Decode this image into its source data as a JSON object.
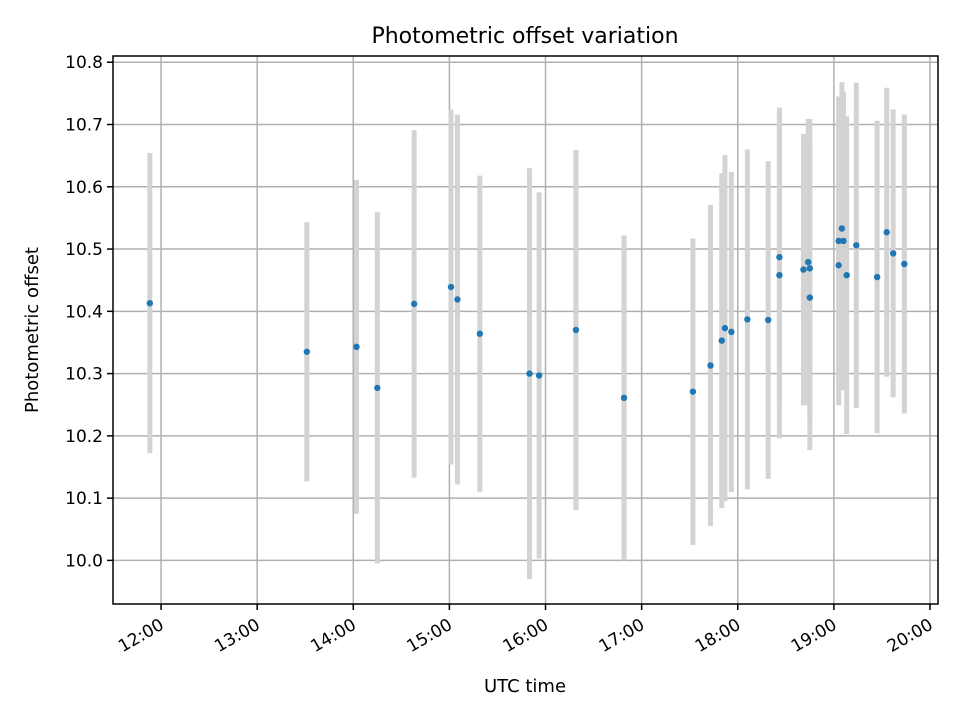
{
  "chart_data": {
    "type": "scatter",
    "title": "Photometric offset variation",
    "xlabel": "UTC time",
    "ylabel": "Photometric offset",
    "xlim": [
      "11:30",
      "20:05"
    ],
    "ylim": [
      9.93,
      10.81
    ],
    "xticks": [
      "12:00",
      "13:00",
      "14:00",
      "15:00",
      "16:00",
      "17:00",
      "18:00",
      "19:00",
      "20:00"
    ],
    "yticks": [
      "10.0",
      "10.1",
      "10.2",
      "10.3",
      "10.4",
      "10.5",
      "10.6",
      "10.7",
      "10.8"
    ],
    "grid": true,
    "point_color": "#1f77b4",
    "errorbar_color": "#d3d3d3",
    "points": [
      {
        "x": "11:53",
        "y": 10.413,
        "err": 0.241
      },
      {
        "x": "13:31",
        "y": 10.335,
        "err": 0.208
      },
      {
        "x": "14:02",
        "y": 10.343,
        "err": 0.268
      },
      {
        "x": "14:15",
        "y": 10.277,
        "err": 0.282
      },
      {
        "x": "14:38",
        "y": 10.412,
        "err": 0.279
      },
      {
        "x": "15:01",
        "y": 10.439,
        "err": 0.285
      },
      {
        "x": "15:05",
        "y": 10.419,
        "err": 0.297
      },
      {
        "x": "15:19",
        "y": 10.364,
        "err": 0.254
      },
      {
        "x": "15:50",
        "y": 10.3,
        "err": 0.33
      },
      {
        "x": "15:56",
        "y": 10.297,
        "err": 0.294
      },
      {
        "x": "16:19",
        "y": 10.37,
        "err": 0.289
      },
      {
        "x": "16:49",
        "y": 10.261,
        "err": 0.261
      },
      {
        "x": "17:32",
        "y": 10.271,
        "err": 0.246
      },
      {
        "x": "17:43",
        "y": 10.313,
        "err": 0.258
      },
      {
        "x": "17:50",
        "y": 10.353,
        "err": 0.269
      },
      {
        "x": "17:52",
        "y": 10.373,
        "err": 0.278
      },
      {
        "x": "17:56",
        "y": 10.367,
        "err": 0.257
      },
      {
        "x": "18:06",
        "y": 10.387,
        "err": 0.273
      },
      {
        "x": "18:19",
        "y": 10.386,
        "err": 0.255
      },
      {
        "x": "18:26",
        "y": 10.487,
        "err": 0.24
      },
      {
        "x": "18:26",
        "y": 10.458,
        "err": 0.262
      },
      {
        "x": "18:41",
        "y": 10.467,
        "err": 0.218
      },
      {
        "x": "18:44",
        "y": 10.479,
        "err": 0.23
      },
      {
        "x": "18:45",
        "y": 10.422,
        "err": 0.245
      },
      {
        "x": "18:45",
        "y": 10.469,
        "err": 0.24
      },
      {
        "x": "19:03",
        "y": 10.474,
        "err": 0.225
      },
      {
        "x": "19:03",
        "y": 10.513,
        "err": 0.232
      },
      {
        "x": "19:05",
        "y": 10.533,
        "err": 0.235
      },
      {
        "x": "19:06",
        "y": 10.513,
        "err": 0.24
      },
      {
        "x": "19:08",
        "y": 10.458,
        "err": 0.255
      },
      {
        "x": "19:14",
        "y": 10.506,
        "err": 0.261
      },
      {
        "x": "19:27",
        "y": 10.455,
        "err": 0.251
      },
      {
        "x": "19:33",
        "y": 10.527,
        "err": 0.232
      },
      {
        "x": "19:37",
        "y": 10.493,
        "err": 0.231
      },
      {
        "x": "19:44",
        "y": 10.476,
        "err": 0.24
      }
    ]
  }
}
